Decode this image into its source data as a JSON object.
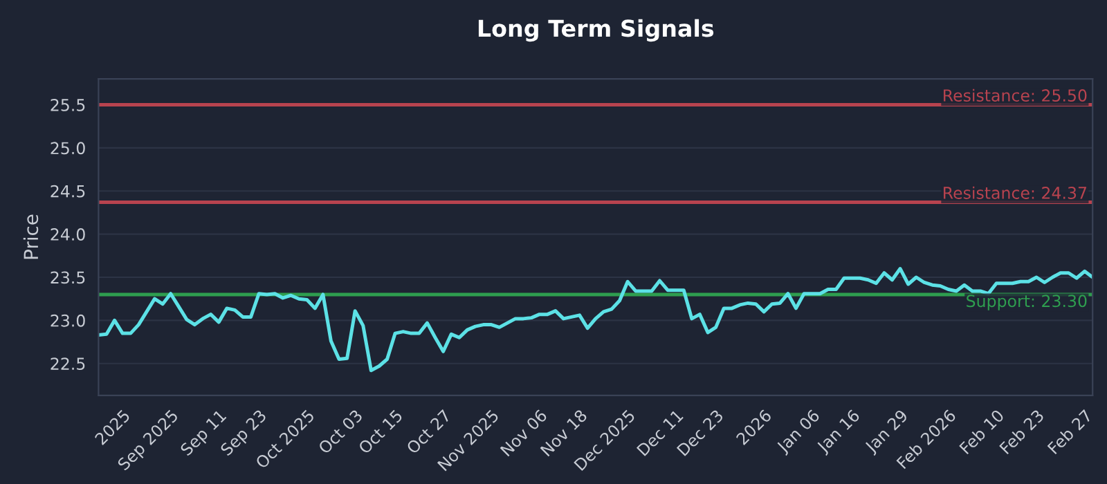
{
  "chart_data": {
    "type": "line",
    "title": "Long Term Signals",
    "ylabel": "Price",
    "categories": [
      null,
      null,
      null,
      "2025",
      null,
      null,
      null,
      null,
      null,
      "Sep 2025",
      null,
      null,
      null,
      null,
      null,
      "Sep 11",
      null,
      null,
      null,
      null,
      "Sep 23",
      null,
      null,
      null,
      null,
      null,
      "Oct 2025",
      null,
      null,
      null,
      null,
      null,
      "Oct 03",
      null,
      null,
      null,
      null,
      "Oct 15",
      null,
      null,
      null,
      null,
      null,
      "Oct 27",
      null,
      null,
      null,
      null,
      null,
      "Nov 2025",
      null,
      null,
      null,
      null,
      null,
      "Nov 06",
      null,
      null,
      null,
      null,
      "Nov 18",
      null,
      null,
      null,
      null,
      null,
      "Dec 2025",
      null,
      null,
      null,
      null,
      null,
      "Dec 11",
      null,
      null,
      null,
      null,
      "Dec 23",
      null,
      null,
      null,
      null,
      null,
      "2026",
      null,
      null,
      null,
      null,
      null,
      "Jan 06",
      null,
      null,
      null,
      null,
      "Jan 16",
      null,
      null,
      null,
      null,
      null,
      "Jan 29",
      null,
      null,
      null,
      null,
      null,
      "Feb 2026",
      null,
      null,
      null,
      null,
      null,
      "Feb 10",
      null,
      null,
      null,
      null,
      "Feb 23",
      null,
      null,
      null,
      null,
      null,
      "Feb 27",
      null
    ],
    "series": [
      {
        "color": "#5ce1e6",
        "values": [
          22.83,
          22.84,
          23.0,
          22.85,
          22.85,
          22.95,
          23.1,
          23.25,
          23.19,
          23.31,
          23.16,
          23.01,
          22.95,
          23.02,
          23.07,
          22.98,
          23.14,
          23.12,
          23.04,
          23.04,
          23.31,
          23.3,
          23.31,
          23.26,
          23.29,
          23.25,
          23.24,
          23.14,
          23.3,
          22.76,
          22.55,
          22.56,
          23.11,
          22.94,
          22.42,
          22.47,
          22.55,
          22.85,
          22.87,
          22.85,
          22.85,
          22.97,
          22.8,
          22.64,
          22.84,
          22.8,
          22.89,
          22.93,
          22.95,
          22.95,
          22.92,
          22.97,
          23.02,
          23.02,
          23.03,
          23.07,
          23.07,
          23.11,
          23.02,
          23.04,
          23.06,
          22.91,
          23.02,
          23.1,
          23.13,
          23.23,
          23.45,
          23.34,
          23.34,
          23.34,
          23.46,
          23.35,
          23.35,
          23.35,
          23.02,
          23.07,
          22.86,
          22.92,
          23.14,
          23.14,
          23.18,
          23.2,
          23.19,
          23.1,
          23.19,
          23.2,
          23.31,
          23.14,
          23.31,
          23.31,
          23.31,
          23.36,
          23.36,
          23.49,
          23.49,
          23.49,
          23.47,
          23.43,
          23.55,
          23.47,
          23.6,
          23.42,
          23.5,
          23.44,
          23.41,
          23.4,
          23.36,
          23.34,
          23.41,
          23.34,
          23.34,
          23.31,
          23.43,
          23.43,
          23.43,
          23.45,
          23.45,
          23.5,
          23.44,
          23.5,
          23.55,
          23.55,
          23.49,
          23.57,
          23.5
        ]
      }
    ],
    "ylim": [
      22.13,
      25.8
    ],
    "yticks": [
      22.5,
      {
        "value": 23,
        "label": "23.0"
      },
      23.5,
      {
        "value": 24,
        "label": "24.0"
      },
      24.5,
      {
        "value": 25,
        "label": "25.0"
      },
      25.5
    ],
    "grid": "y",
    "legend": false,
    "marker": "none",
    "line_style": "solid",
    "ref_lines": [
      {
        "axis": "y",
        "value": 25.5,
        "label": "Resistance: 25.50",
        "color": "#b8434f"
      },
      {
        "axis": "y",
        "value": 24.37,
        "label": "Resistance: 24.37",
        "color": "#b8434f"
      },
      {
        "axis": "y",
        "value": 23.3,
        "label": "Support: 23.30",
        "color": "#2e9e4f"
      }
    ]
  }
}
